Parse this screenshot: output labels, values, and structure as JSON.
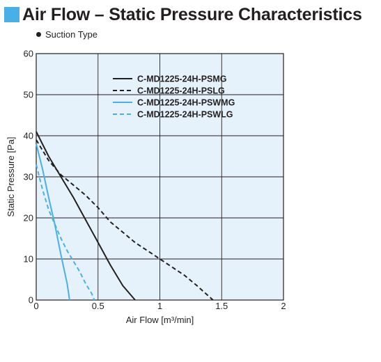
{
  "header": {
    "title": "Air Flow – Static Pressure Characteristics",
    "accent_color": "#4aafe6"
  },
  "subtitle": "Suction Type",
  "chart_data": {
    "type": "line",
    "xlabel": "Air Flow [m³/min]",
    "ylabel": "Static Pressure [Pa]",
    "xlim": [
      0,
      2
    ],
    "ylim": [
      0,
      60
    ],
    "x_ticks": [
      0,
      0.5,
      1,
      1.5,
      2
    ],
    "x_tick_labels": [
      "0",
      "0.5",
      "1",
      "1.5",
      "2"
    ],
    "y_ticks": [
      0,
      10,
      20,
      30,
      40,
      50,
      60
    ],
    "y_tick_labels": [
      "0",
      "10",
      "20",
      "30",
      "40",
      "50",
      "60"
    ],
    "grid": true,
    "legend_position": "top-right",
    "plot_background": "#e6f2fb",
    "series": [
      {
        "name": "C-MD1225-24H-PSMG",
        "color": "#231f20",
        "dash": "solid",
        "points": [
          [
            0,
            41
          ],
          [
            0.1,
            35
          ],
          [
            0.2,
            30
          ],
          [
            0.3,
            25
          ],
          [
            0.4,
            19.5
          ],
          [
            0.5,
            14
          ],
          [
            0.6,
            8.5
          ],
          [
            0.7,
            3.5
          ],
          [
            0.8,
            0
          ]
        ]
      },
      {
        "name": "C-MD1225-24H-PSLG",
        "color": "#231f20",
        "dash": "dashed",
        "points": [
          [
            0,
            39
          ],
          [
            0.1,
            34
          ],
          [
            0.2,
            30.5
          ],
          [
            0.3,
            28
          ],
          [
            0.4,
            25.5
          ],
          [
            0.5,
            22.5
          ],
          [
            0.6,
            19
          ],
          [
            0.7,
            16.5
          ],
          [
            0.8,
            14
          ],
          [
            0.9,
            12
          ],
          [
            1.0,
            10
          ],
          [
            1.1,
            8
          ],
          [
            1.2,
            6
          ],
          [
            1.3,
            3.5
          ],
          [
            1.43,
            0
          ]
        ]
      },
      {
        "name": "C-MD1225-24H-PSWMG",
        "color": "#4aafe6",
        "dash": "solid",
        "points": [
          [
            0,
            38
          ],
          [
            0.05,
            32
          ],
          [
            0.1,
            25
          ],
          [
            0.15,
            18.5
          ],
          [
            0.2,
            11
          ],
          [
            0.25,
            4
          ],
          [
            0.27,
            0
          ]
        ]
      },
      {
        "name": "C-MD1225-24H-PSWLG",
        "color": "#4aafe6",
        "dash": "dashed",
        "points": [
          [
            0,
            33
          ],
          [
            0.05,
            27
          ],
          [
            0.1,
            22
          ],
          [
            0.15,
            18.5
          ],
          [
            0.2,
            15
          ],
          [
            0.25,
            12
          ],
          [
            0.3,
            9.5
          ],
          [
            0.35,
            7
          ],
          [
            0.4,
            4
          ],
          [
            0.45,
            1.5
          ],
          [
            0.47,
            0
          ]
        ]
      }
    ]
  }
}
